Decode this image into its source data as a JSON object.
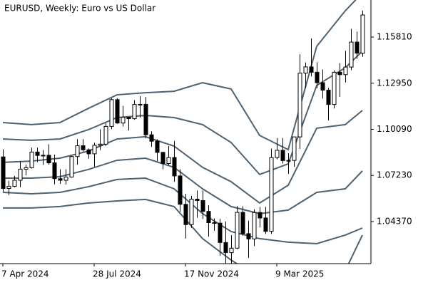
{
  "chart_data": {
    "type": "candlestick",
    "title": "EURUSD, Weekly:  Euro vs US Dollar",
    "categories": [
      "7 Apr 2024",
      null,
      null,
      null,
      null,
      null,
      null,
      null,
      null,
      null,
      null,
      null,
      null,
      null,
      null,
      null,
      "28 Jul 2024",
      null,
      null,
      null,
      null,
      null,
      null,
      null,
      null,
      null,
      null,
      null,
      null,
      null,
      null,
      null,
      "17 Nov 2024",
      null,
      null,
      null,
      null,
      null,
      null,
      null,
      null,
      null,
      null,
      null,
      null,
      null,
      null,
      null,
      "9 Mar 2025",
      null,
      null,
      null,
      null,
      null,
      null,
      null,
      null,
      null,
      null,
      null,
      null,
      null,
      null,
      null
    ],
    "open": [
      1.0838,
      1.0642,
      1.0655,
      1.0693,
      1.0762,
      1.0771,
      1.0868,
      1.0847,
      1.0848,
      1.0801,
      1.0703,
      1.0693,
      1.0713,
      1.084,
      1.0907,
      1.0882,
      1.0857,
      1.091,
      1.0917,
      1.1027,
      1.1193,
      1.1048,
      1.1084,
      1.1075,
      1.1163,
      1.1164,
      1.0975,
      1.0935,
      1.0866,
      1.0797,
      1.0834,
      1.072,
      1.0544,
      1.0418,
      1.0576,
      1.0567,
      1.05,
      1.043,
      1.0427,
      1.0307,
      1.0244,
      1.0272,
      1.0494,
      1.0362,
      1.0329,
      1.0493,
      1.0459,
      1.0376,
      1.0834,
      1.0879,
      1.0815,
      1.0816,
      1.0962,
      1.1357,
      1.1396,
      1.1363,
      1.1298,
      1.1252,
      1.1163,
      1.1363,
      1.1348,
      1.1395,
      1.155,
      1.1481
    ],
    "high": [
      1.0885,
      1.069,
      1.072,
      1.0812,
      1.079,
      1.0895,
      1.0895,
      1.088,
      1.0916,
      1.0852,
      1.0761,
      1.0761,
      1.0844,
      1.0948,
      1.0948,
      1.089,
      1.0926,
      1.1009,
      1.1048,
      1.1202,
      1.1202,
      1.1155,
      1.1087,
      1.119,
      1.1214,
      1.1209,
      1.0996,
      1.0947,
      1.087,
      1.0905,
      1.0937,
      1.0761,
      1.0609,
      1.0596,
      1.063,
      1.063,
      1.0537,
      1.0456,
      1.0454,
      1.0437,
      1.0353,
      1.0533,
      1.0532,
      1.0442,
      1.0513,
      1.0528,
      1.0528,
      1.0889,
      1.0955,
      1.0955,
      1.0861,
      1.0963,
      1.1474,
      1.1424,
      1.1573,
      1.1425,
      1.138,
      1.1266,
      1.1375,
      1.142,
      1.1495,
      1.1632,
      1.1615,
      1.1745
    ],
    "low": [
      1.0622,
      1.0601,
      1.065,
      1.065,
      1.0724,
      1.0765,
      1.0805,
      1.0788,
      1.079,
      1.0668,
      1.0671,
      1.0666,
      1.0709,
      1.0789,
      1.0872,
      1.0826,
      1.0777,
      1.088,
      1.0905,
      1.101,
      1.1043,
      1.1026,
      1.1001,
      1.1068,
      1.1082,
      1.0953,
      1.09,
      1.0811,
      1.0761,
      1.0788,
      1.0683,
      1.0497,
      1.0332,
      1.0398,
      1.046,
      1.0453,
      1.0343,
      1.038,
      1.0224,
      1.0177,
      1.0178,
      1.0266,
      1.035,
      1.0211,
      1.0285,
      1.04,
      1.036,
      1.036,
      1.0823,
      1.0797,
      1.0732,
      1.0777,
      1.0888,
      1.1265,
      1.1337,
      1.1264,
      1.12,
      1.1065,
      1.1138,
      1.121,
      1.13,
      1.1376,
      1.1446,
      1.1459
    ],
    "close": [
      1.0642,
      1.0655,
      1.0693,
      1.0762,
      1.0771,
      1.0868,
      1.0847,
      1.0848,
      1.0801,
      1.0703,
      1.0693,
      1.0713,
      1.084,
      1.0907,
      1.0882,
      1.0857,
      1.091,
      1.0917,
      1.1027,
      1.1193,
      1.1048,
      1.1084,
      1.1075,
      1.1163,
      1.1164,
      1.0975,
      1.0935,
      1.0866,
      1.0797,
      1.0834,
      1.072,
      1.0544,
      1.0418,
      1.0576,
      1.0567,
      1.05,
      1.043,
      1.0427,
      1.0307,
      1.0244,
      1.0272,
      1.0494,
      1.0362,
      1.0329,
      1.0493,
      1.0459,
      1.0376,
      1.0834,
      1.0879,
      1.0815,
      1.0816,
      1.0962,
      1.1357,
      1.1396,
      1.1363,
      1.1298,
      1.1252,
      1.1163,
      1.1363,
      1.1348,
      1.1395,
      1.155,
      1.1481,
      1.1718
    ],
    "up_color": "#ffffff",
    "down_color": "#000000",
    "band_color": "#4f6272",
    "bands": [
      {
        "x": [
          0,
          5,
          10,
          15,
          20,
          25,
          30,
          35,
          40,
          45,
          50,
          55,
          60,
          63
        ],
        "values": [
          1.1051,
          1.1038,
          1.1051,
          1.1139,
          1.1223,
          1.1236,
          1.1245,
          1.1298,
          1.1259,
          1.0971,
          1.0883,
          1.1524,
          1.1744,
          1.1855
        ]
      },
      {
        "x": [
          0,
          5,
          10,
          15,
          20,
          25,
          30,
          35,
          40,
          45,
          50,
          55,
          60,
          63
        ],
        "values": [
          1.0949,
          1.0941,
          1.0949,
          1.1007,
          1.1082,
          1.1095,
          1.1082,
          1.1038,
          1.0927,
          1.0729,
          1.0795,
          1.1281,
          1.1391,
          1.1493
        ]
      },
      {
        "x": [
          0,
          5,
          10,
          15,
          20,
          25,
          30,
          35,
          40,
          45,
          50,
          55,
          60,
          63
        ],
        "values": [
          1.0804,
          1.0812,
          1.083,
          1.0874,
          1.0949,
          1.0963,
          1.0905,
          1.0773,
          1.0684,
          1.0552,
          1.0662,
          1.1016,
          1.1038,
          1.1126
        ]
      },
      {
        "x": [
          0,
          5,
          10,
          15,
          20,
          25,
          30,
          35,
          40,
          45,
          50,
          55,
          60,
          63
        ],
        "values": [
          1.0706,
          1.0706,
          1.0715,
          1.076,
          1.0817,
          1.083,
          1.0773,
          1.064,
          1.053,
          1.0486,
          1.0508,
          1.0618,
          1.064,
          1.0751
        ]
      },
      {
        "x": [
          0,
          5,
          10,
          15,
          20,
          25,
          30,
          35,
          40,
          45,
          50,
          55,
          60,
          63
        ],
        "values": [
          1.0618,
          1.0609,
          1.0618,
          1.0653,
          1.0698,
          1.0706,
          1.064,
          1.0486,
          1.0375,
          1.0331,
          1.0309,
          1.03,
          1.0353,
          1.0397
        ]
      },
      {
        "x": [
          0,
          5,
          10,
          15,
          20,
          25,
          30,
          35,
          40,
          45,
          50,
          55,
          60,
          63
        ],
        "values": [
          1.0521,
          1.0521,
          1.053,
          1.0552,
          1.0565,
          1.0574,
          1.053,
          1.0331,
          1.0198,
          1.0088,
          1.0044,
          1.0044,
          1.0132,
          1.0353
        ]
      }
    ],
    "ylim": [
      1.0176,
      1.1811
    ],
    "yticks": [
      {
        "value": 1.1581,
        "label": "1.15810"
      },
      {
        "value": 1.1295,
        "label": "1.12950"
      },
      {
        "value": 1.1009,
        "label": "1.10090"
      },
      {
        "value": 1.0723,
        "label": "1.07230"
      },
      {
        "value": 1.0437,
        "label": "1.04370"
      }
    ]
  }
}
